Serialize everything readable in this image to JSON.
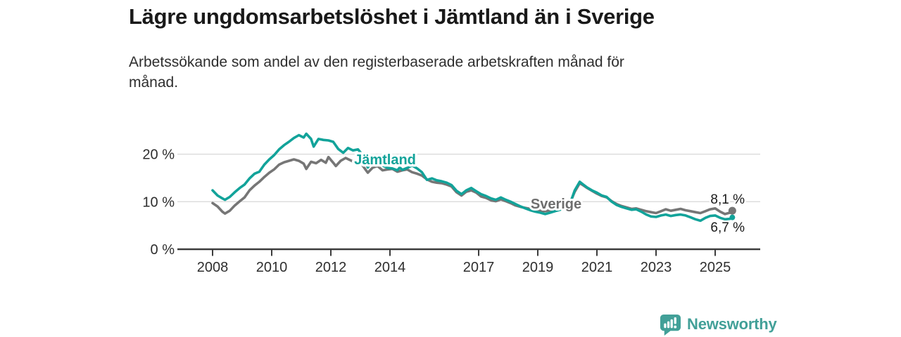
{
  "header": {
    "title": "Lägre ungdomsarbetslöshet i Jämtland än i Sverige",
    "subtitle": "Arbetssökande som andel av den registerbaserade arbetskraften månad för månad."
  },
  "branding": {
    "name": "Newsworthy",
    "logo_icon": "bar-chart-speech-bubble",
    "color": "#42a098"
  },
  "colors": {
    "jamtland_line": "#12a39a",
    "sverige_line": "#767676",
    "sverige_label": "#6e6e6e",
    "grid": "#dddddd",
    "axis": "#3c3c3c",
    "text": "#2e2e2e",
    "end_label_text": "#1a1a1a"
  },
  "chart_data": {
    "type": "line",
    "unit": "%",
    "grid": true,
    "legend_position": "inline-labels-on-lines",
    "x_axis": {
      "ticks": [
        2008,
        2010,
        2012,
        2014,
        2017,
        2019,
        2021,
        2023,
        2025
      ],
      "range": [
        2007.9,
        2025.9
      ]
    },
    "y_axis": {
      "ticks": [
        0,
        10,
        20
      ],
      "tick_labels": [
        "0 %",
        "10 %",
        "20 %"
      ],
      "range": [
        0,
        26
      ]
    },
    "series": [
      {
        "name": "Sverige",
        "slug": "sverige",
        "color": "#767676",
        "end_label": "8,1 %",
        "end_value": 8.1,
        "points": [
          [
            2008.0,
            9.7
          ],
          [
            2008.17,
            9.0
          ],
          [
            2008.33,
            7.9
          ],
          [
            2008.42,
            7.5
          ],
          [
            2008.58,
            8.1
          ],
          [
            2008.75,
            9.2
          ],
          [
            2008.92,
            10.1
          ],
          [
            2009.08,
            10.9
          ],
          [
            2009.25,
            12.4
          ],
          [
            2009.42,
            13.4
          ],
          [
            2009.58,
            14.2
          ],
          [
            2009.75,
            15.2
          ],
          [
            2009.92,
            16.1
          ],
          [
            2010.08,
            16.8
          ],
          [
            2010.25,
            17.8
          ],
          [
            2010.42,
            18.3
          ],
          [
            2010.58,
            18.6
          ],
          [
            2010.75,
            18.9
          ],
          [
            2010.92,
            18.6
          ],
          [
            2011.08,
            18.0
          ],
          [
            2011.17,
            16.9
          ],
          [
            2011.33,
            18.4
          ],
          [
            2011.5,
            18.1
          ],
          [
            2011.67,
            18.8
          ],
          [
            2011.83,
            18.2
          ],
          [
            2011.92,
            19.4
          ],
          [
            2012.08,
            18.2
          ],
          [
            2012.17,
            17.5
          ],
          [
            2012.33,
            18.6
          ],
          [
            2012.5,
            19.2
          ],
          [
            2012.67,
            18.7
          ],
          [
            2012.83,
            18.2
          ],
          [
            2013.0,
            18.3
          ],
          [
            2013.17,
            16.8
          ],
          [
            2013.25,
            16.1
          ],
          [
            2013.42,
            17.2
          ],
          [
            2013.58,
            17.5
          ],
          [
            2013.75,
            16.6
          ],
          [
            2013.92,
            16.8
          ],
          [
            2014.08,
            16.9
          ],
          [
            2014.25,
            16.3
          ],
          [
            2014.42,
            16.6
          ],
          [
            2014.58,
            16.8
          ],
          [
            2014.75,
            16.2
          ],
          [
            2014.92,
            15.9
          ],
          [
            2015.08,
            15.5
          ],
          [
            2015.25,
            14.7
          ],
          [
            2015.42,
            14.2
          ],
          [
            2015.58,
            14.0
          ],
          [
            2015.75,
            13.9
          ],
          [
            2015.92,
            13.6
          ],
          [
            2016.08,
            13.2
          ],
          [
            2016.25,
            12.0
          ],
          [
            2016.42,
            11.3
          ],
          [
            2016.58,
            12.1
          ],
          [
            2016.75,
            12.4
          ],
          [
            2016.92,
            11.9
          ],
          [
            2017.08,
            11.1
          ],
          [
            2017.25,
            10.8
          ],
          [
            2017.42,
            10.3
          ],
          [
            2017.58,
            10.1
          ],
          [
            2017.75,
            10.5
          ],
          [
            2017.92,
            10.1
          ],
          [
            2018.08,
            9.7
          ],
          [
            2018.25,
            9.2
          ],
          [
            2018.42,
            8.9
          ],
          [
            2018.58,
            8.7
          ],
          [
            2018.75,
            8.5
          ],
          [
            2018.92,
            8.3
          ],
          [
            2019.08,
            8.1
          ],
          [
            2019.25,
            8.0
          ],
          [
            2019.42,
            8.2
          ],
          [
            2019.58,
            8.4
          ],
          [
            2019.75,
            8.7
          ],
          [
            2019.92,
            9.0
          ],
          [
            2020.08,
            9.6
          ],
          [
            2020.25,
            12.1
          ],
          [
            2020.42,
            13.9
          ],
          [
            2020.5,
            13.6
          ],
          [
            2020.67,
            12.9
          ],
          [
            2020.83,
            12.3
          ],
          [
            2021.0,
            11.7
          ],
          [
            2021.17,
            11.2
          ],
          [
            2021.33,
            10.9
          ],
          [
            2021.5,
            10.1
          ],
          [
            2021.67,
            9.5
          ],
          [
            2021.83,
            9.1
          ],
          [
            2022.0,
            8.8
          ],
          [
            2022.17,
            8.5
          ],
          [
            2022.33,
            8.6
          ],
          [
            2022.5,
            8.3
          ],
          [
            2022.67,
            8.0
          ],
          [
            2022.83,
            7.8
          ],
          [
            2023.0,
            7.6
          ],
          [
            2023.17,
            8.0
          ],
          [
            2023.33,
            8.4
          ],
          [
            2023.5,
            8.1
          ],
          [
            2023.67,
            8.3
          ],
          [
            2023.83,
            8.5
          ],
          [
            2024.0,
            8.2
          ],
          [
            2024.17,
            8.0
          ],
          [
            2024.33,
            7.8
          ],
          [
            2024.5,
            7.6
          ],
          [
            2024.67,
            8.0
          ],
          [
            2024.83,
            8.4
          ],
          [
            2025.0,
            8.6
          ],
          [
            2025.17,
            7.9
          ],
          [
            2025.33,
            7.4
          ],
          [
            2025.5,
            7.7
          ],
          [
            2025.58,
            8.1
          ]
        ]
      },
      {
        "name": "Jämtland",
        "slug": "jamtland",
        "color": "#12a39a",
        "end_label": "6,7 %",
        "end_value": 6.7,
        "points": [
          [
            2008.0,
            12.4
          ],
          [
            2008.17,
            11.3
          ],
          [
            2008.33,
            10.7
          ],
          [
            2008.42,
            10.4
          ],
          [
            2008.58,
            11.0
          ],
          [
            2008.75,
            12.0
          ],
          [
            2008.92,
            12.9
          ],
          [
            2009.08,
            13.6
          ],
          [
            2009.25,
            14.9
          ],
          [
            2009.42,
            15.9
          ],
          [
            2009.58,
            16.3
          ],
          [
            2009.75,
            17.8
          ],
          [
            2009.92,
            18.9
          ],
          [
            2010.08,
            19.8
          ],
          [
            2010.25,
            21.0
          ],
          [
            2010.42,
            21.9
          ],
          [
            2010.58,
            22.6
          ],
          [
            2010.75,
            23.4
          ],
          [
            2010.92,
            24.0
          ],
          [
            2011.08,
            23.5
          ],
          [
            2011.17,
            24.3
          ],
          [
            2011.33,
            23.2
          ],
          [
            2011.42,
            21.6
          ],
          [
            2011.58,
            23.2
          ],
          [
            2011.75,
            23.0
          ],
          [
            2011.92,
            22.9
          ],
          [
            2012.08,
            22.6
          ],
          [
            2012.25,
            21.1
          ],
          [
            2012.42,
            20.3
          ],
          [
            2012.58,
            21.3
          ],
          [
            2012.75,
            20.8
          ],
          [
            2012.92,
            21.0
          ],
          [
            2013.0,
            20.4
          ],
          [
            2013.17,
            18.4
          ],
          [
            2013.25,
            17.2
          ],
          [
            2013.42,
            18.6
          ],
          [
            2013.58,
            18.9
          ],
          [
            2013.75,
            17.6
          ],
          [
            2013.92,
            17.1
          ],
          [
            2014.08,
            17.0
          ],
          [
            2014.25,
            16.6
          ],
          [
            2014.33,
            17.2
          ],
          [
            2014.42,
            16.7
          ],
          [
            2014.58,
            17.1
          ],
          [
            2014.75,
            17.6
          ],
          [
            2014.92,
            17.0
          ],
          [
            2015.08,
            16.2
          ],
          [
            2015.25,
            14.6
          ],
          [
            2015.42,
            14.9
          ],
          [
            2015.58,
            14.5
          ],
          [
            2015.75,
            14.3
          ],
          [
            2015.92,
            14.0
          ],
          [
            2016.08,
            13.5
          ],
          [
            2016.25,
            12.3
          ],
          [
            2016.42,
            11.6
          ],
          [
            2016.58,
            12.4
          ],
          [
            2016.75,
            12.9
          ],
          [
            2016.92,
            12.2
          ],
          [
            2017.08,
            11.6
          ],
          [
            2017.25,
            11.2
          ],
          [
            2017.42,
            10.7
          ],
          [
            2017.58,
            10.4
          ],
          [
            2017.75,
            10.9
          ],
          [
            2017.92,
            10.4
          ],
          [
            2018.08,
            10.0
          ],
          [
            2018.25,
            9.5
          ],
          [
            2018.42,
            9.0
          ],
          [
            2018.58,
            8.6
          ],
          [
            2018.75,
            8.2
          ],
          [
            2018.92,
            7.9
          ],
          [
            2019.08,
            7.7
          ],
          [
            2019.25,
            7.4
          ],
          [
            2019.42,
            7.7
          ],
          [
            2019.58,
            8.0
          ],
          [
            2019.75,
            8.3
          ],
          [
            2019.92,
            8.7
          ],
          [
            2020.08,
            9.4
          ],
          [
            2020.25,
            12.4
          ],
          [
            2020.42,
            14.2
          ],
          [
            2020.5,
            13.8
          ],
          [
            2020.67,
            13.0
          ],
          [
            2020.83,
            12.4
          ],
          [
            2021.0,
            11.9
          ],
          [
            2021.17,
            11.3
          ],
          [
            2021.33,
            11.0
          ],
          [
            2021.5,
            10.0
          ],
          [
            2021.67,
            9.3
          ],
          [
            2021.83,
            8.9
          ],
          [
            2022.0,
            8.6
          ],
          [
            2022.17,
            8.3
          ],
          [
            2022.33,
            8.4
          ],
          [
            2022.5,
            7.9
          ],
          [
            2022.67,
            7.3
          ],
          [
            2022.83,
            6.9
          ],
          [
            2023.0,
            6.8
          ],
          [
            2023.17,
            7.1
          ],
          [
            2023.33,
            7.3
          ],
          [
            2023.5,
            7.0
          ],
          [
            2023.67,
            7.2
          ],
          [
            2023.83,
            7.3
          ],
          [
            2024.0,
            7.1
          ],
          [
            2024.17,
            6.7
          ],
          [
            2024.33,
            6.3
          ],
          [
            2024.5,
            6.0
          ],
          [
            2024.67,
            6.6
          ],
          [
            2024.83,
            7.0
          ],
          [
            2025.0,
            7.1
          ],
          [
            2025.17,
            6.6
          ],
          [
            2025.33,
            6.3
          ],
          [
            2025.5,
            6.4
          ],
          [
            2025.58,
            6.7
          ]
        ]
      }
    ]
  }
}
